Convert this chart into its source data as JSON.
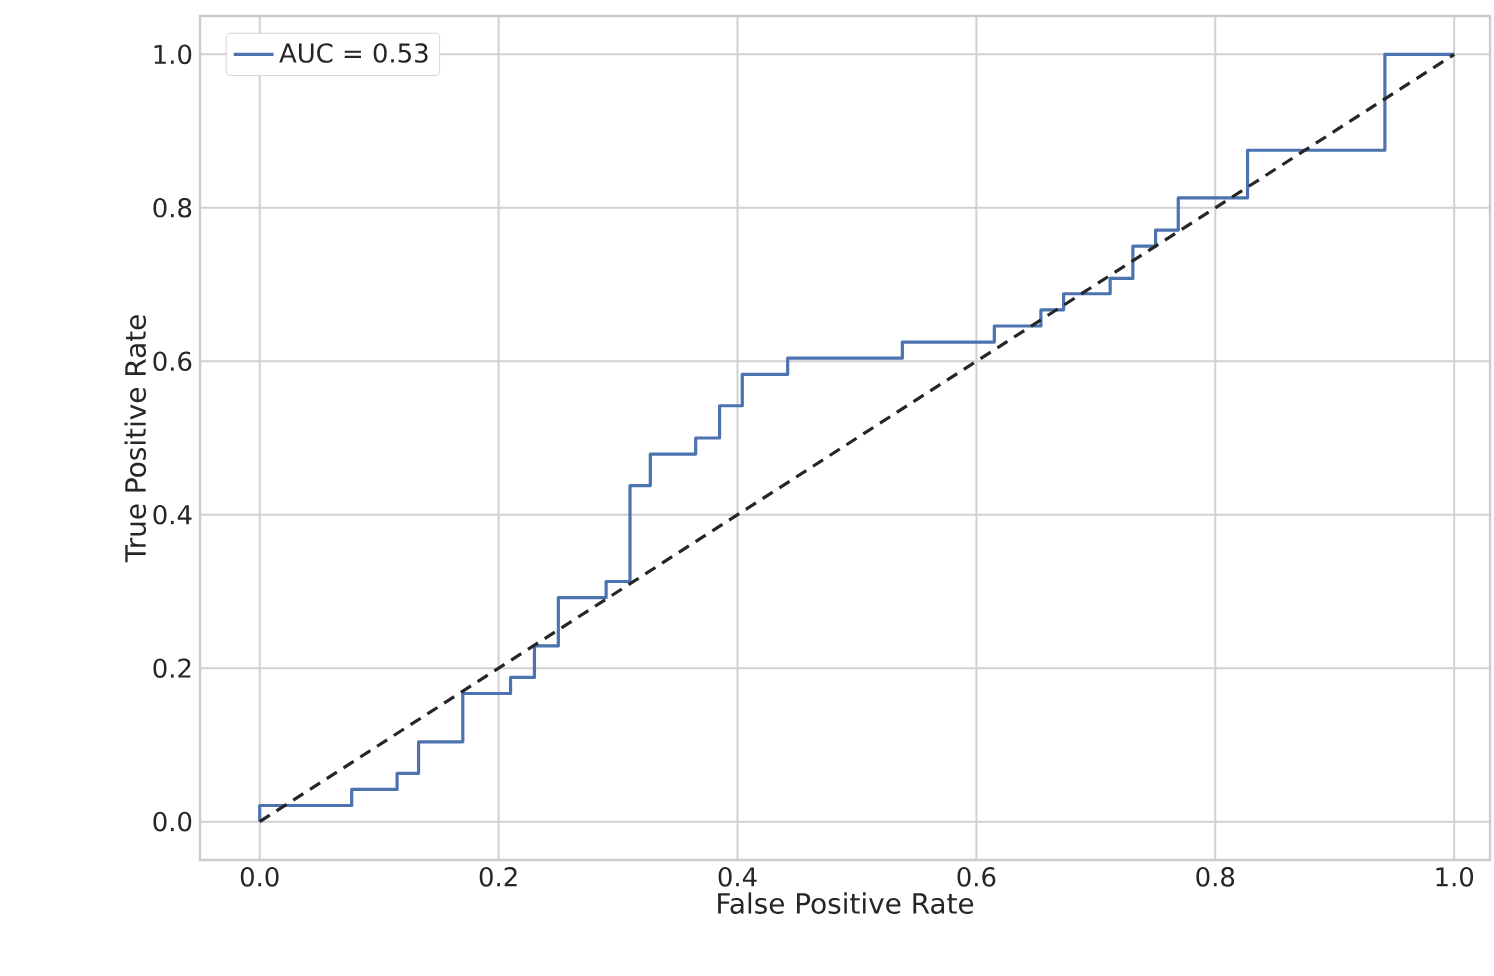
{
  "chart_data": {
    "type": "step",
    "xlabel": "False Positive Rate",
    "ylabel": "True Positive Rate",
    "xlim": [
      -0.05,
      1.03
    ],
    "ylim": [
      -0.05,
      1.05
    ],
    "xticks": [
      {
        "value": 0,
        "label": "0.0"
      },
      {
        "value": 0.2,
        "label": "0.2"
      },
      {
        "value": 0.4,
        "label": "0.4"
      },
      {
        "value": 0.6,
        "label": "0.6"
      },
      {
        "value": 0.8,
        "label": "0.8"
      },
      {
        "value": 1,
        "label": "1.0"
      }
    ],
    "yticks": [
      {
        "value": 0,
        "label": "0.0"
      },
      {
        "value": 0.2,
        "label": "0.2"
      },
      {
        "value": 0.4,
        "label": "0.4"
      },
      {
        "value": 0.6,
        "label": "0.6"
      },
      {
        "value": 0.8,
        "label": "0.8"
      },
      {
        "value": 1,
        "label": "1.0"
      }
    ],
    "grid": true,
    "legend": "top left",
    "series": [
      {
        "name": "AUC = 0.53",
        "color": "#4c72b0",
        "x": [
          0,
          0,
          0.077,
          0.115,
          0.133,
          0.17,
          0.21,
          0.23,
          0.25,
          0.29,
          0.31,
          0.327,
          0.365,
          0.385,
          0.404,
          0.442,
          0.538,
          0.615,
          0.654,
          0.673,
          0.712,
          0.731,
          0.75,
          0.769,
          0.827,
          0.942,
          1.0
        ],
        "values": [
          0,
          0.021,
          0.042,
          0.063,
          0.104,
          0.167,
          0.188,
          0.229,
          0.292,
          0.313,
          0.438,
          0.479,
          0.5,
          0.542,
          0.583,
          0.604,
          0.625,
          0.646,
          0.667,
          0.688,
          0.708,
          0.75,
          0.771,
          0.813,
          0.875,
          1.0,
          1.0
        ]
      },
      {
        "color": "#262626",
        "type": "line",
        "line_style": "dashed",
        "x": [
          0,
          1
        ],
        "values": [
          0,
          1
        ]
      }
    ]
  }
}
